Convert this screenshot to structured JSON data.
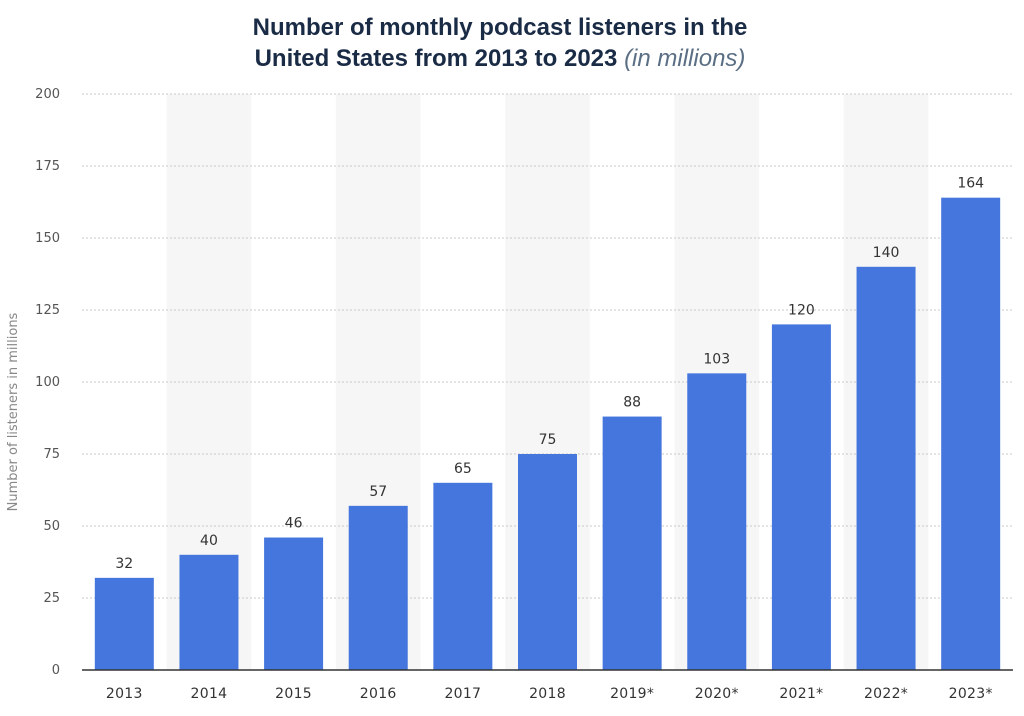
{
  "chart_data": {
    "type": "bar",
    "title_line1": "Number of monthly podcast listeners in the",
    "title_line2": "United States from 2013 to 2023",
    "subtitle": "(in millions)",
    "xlabel": "",
    "ylabel": "Number of listeners in millions",
    "categories": [
      "2013",
      "2014",
      "2015",
      "2016",
      "2017",
      "2018",
      "2019*",
      "2020*",
      "2021*",
      "2022*",
      "2023*"
    ],
    "values": [
      32,
      40,
      46,
      57,
      65,
      75,
      88,
      103,
      120,
      140,
      164
    ],
    "ylim": [
      0,
      200
    ],
    "yticks": [
      0,
      25,
      50,
      75,
      100,
      125,
      150,
      175,
      200
    ],
    "grid": true,
    "legend": "none",
    "bar_color": "#4476dd",
    "band_color": "#f6f6f6",
    "grid_color": "#c8c8c8",
    "axis_color": "#333333"
  }
}
